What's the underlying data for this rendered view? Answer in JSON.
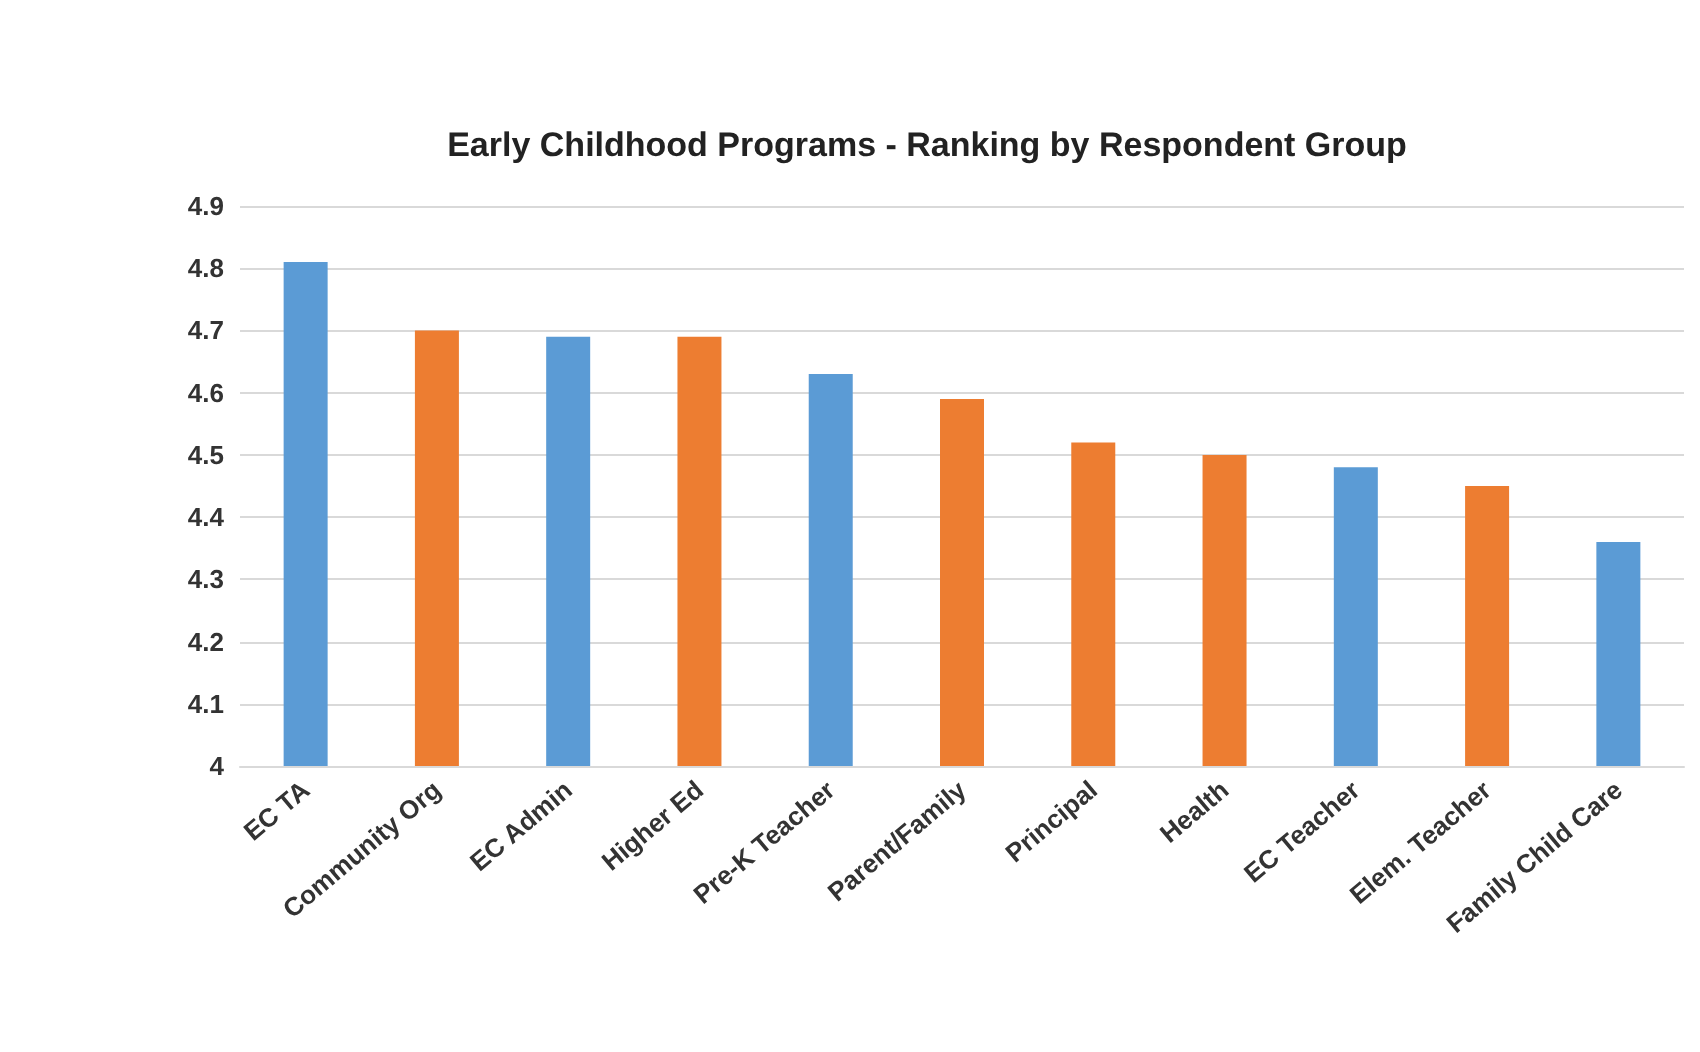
{
  "chart_data": {
    "type": "bar",
    "title": "Early Childhood Programs - Ranking by Respondent Group",
    "categories": [
      "EC TA",
      "Community Org",
      "EC Admin",
      "Higher Ed",
      "Pre-K Teacher",
      "Parent/Family",
      "Principal",
      "Health",
      "EC Teacher",
      "Elem. Teacher",
      "Family Child Care"
    ],
    "values": [
      4.81,
      4.7,
      4.69,
      4.69,
      4.63,
      4.59,
      4.52,
      4.5,
      4.48,
      4.45,
      4.36
    ],
    "colors": [
      "#5b9bd5",
      "#ed7d31",
      "#5b9bd5",
      "#ed7d31",
      "#5b9bd5",
      "#ed7d31",
      "#ed7d31",
      "#ed7d31",
      "#5b9bd5",
      "#ed7d31",
      "#5b9bd5"
    ],
    "ylim": [
      4,
      4.9
    ],
    "yticks": [
      4,
      4.1,
      4.2,
      4.3,
      4.4,
      4.5,
      4.6,
      4.7,
      4.8,
      4.9
    ],
    "grid": "y"
  }
}
